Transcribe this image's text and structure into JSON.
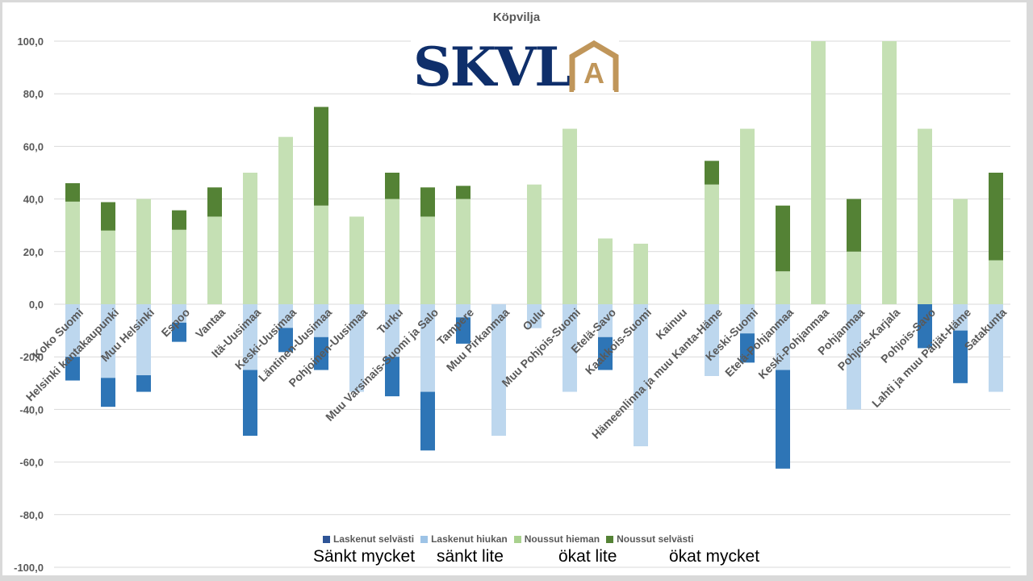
{
  "chart_data": {
    "type": "bar",
    "stacked": true,
    "title": "Köpvilja",
    "xlabel": "",
    "ylabel": "",
    "ylim": [
      -100,
      100
    ],
    "ytick_step": 20,
    "grid": true,
    "legend_position": "bottom",
    "categories": [
      "Koko Suomi",
      "Helsinki kantakaupunki",
      "Muu Helsinki",
      "Espoo",
      "Vantaa",
      "Itä-Uusimaa",
      "Keski-Uusimaa",
      "Läntinen-Uusimaa",
      "Pohjoinen-Uusimaa",
      "Turku",
      "Muu Varsinais-Suomi ja Salo",
      "Tampere",
      "Muu Pirkanmaa",
      "Oulu",
      "Muu Pohjois-Suomi",
      "Etelä-Savo",
      "Kaakkois-Suomi",
      "Kainuu",
      "Hämeenlinna ja muu Kanta-Häme",
      "Keski-Suomi",
      "Etelä-Pohjanmaa",
      "Keski-Pohjanmaa",
      "Pohjanmaa",
      "Pohjois-Karjala",
      "Pohjois-Savo",
      "Lahti ja muu Päijät-Häme",
      "Satakunta"
    ],
    "series": [
      {
        "name": "Laskenut selvästi",
        "color": "#2e75b6",
        "values": [
          -9,
          -11,
          -6.3,
          -7.3,
          0,
          -25,
          -9.2,
          -12.5,
          0,
          -15,
          -22.3,
          -10,
          0,
          0,
          0,
          -12.5,
          0,
          0,
          0,
          -11.1,
          -37.5,
          0,
          0,
          0,
          -16.7,
          -20,
          0
        ]
      },
      {
        "name": "Laskenut hiukan",
        "color": "#bdd7ee",
        "values": [
          -20,
          -28,
          -27,
          -7,
          0,
          -25,
          -9,
          -12.5,
          -33.3,
          -20,
          -33.3,
          -5,
          -50,
          -9.1,
          -33.3,
          -12.5,
          -54,
          0,
          -27.3,
          -11.1,
          -25,
          0,
          -40,
          0,
          0,
          -10,
          -33.3
        ]
      },
      {
        "name": "Noussut hieman",
        "color": "#c5e0b4",
        "values": [
          39,
          28,
          40,
          28.3,
          33.3,
          50,
          63.6,
          37.5,
          33.3,
          40,
          33.3,
          40,
          0,
          45.5,
          66.7,
          25,
          23,
          0,
          45.5,
          66.7,
          12.5,
          100,
          20,
          100,
          66.7,
          40,
          16.7
        ]
      },
      {
        "name": "Noussut selvästi",
        "color": "#548235",
        "values": [
          7,
          10.8,
          0,
          7.4,
          11.1,
          0,
          0,
          37.5,
          0,
          10,
          11.1,
          5,
          0,
          0,
          0,
          0,
          0,
          0,
          9,
          0,
          25,
          0,
          20,
          0,
          0,
          0,
          33.3
        ]
      }
    ],
    "ytick_labels": [
      "100,0",
      "80,0",
      "60,0",
      "40,0",
      "20,0",
      "0,0",
      "-20,0",
      "-40,0",
      "-60,0",
      "-80,0",
      "-100,0"
    ]
  },
  "logo": {
    "text": "SKVL",
    "accent_letter": "A"
  },
  "legend_translations": [
    "Sänkt mycket",
    "sänkt lite",
    "ökat lite",
    "ökat mycket"
  ]
}
